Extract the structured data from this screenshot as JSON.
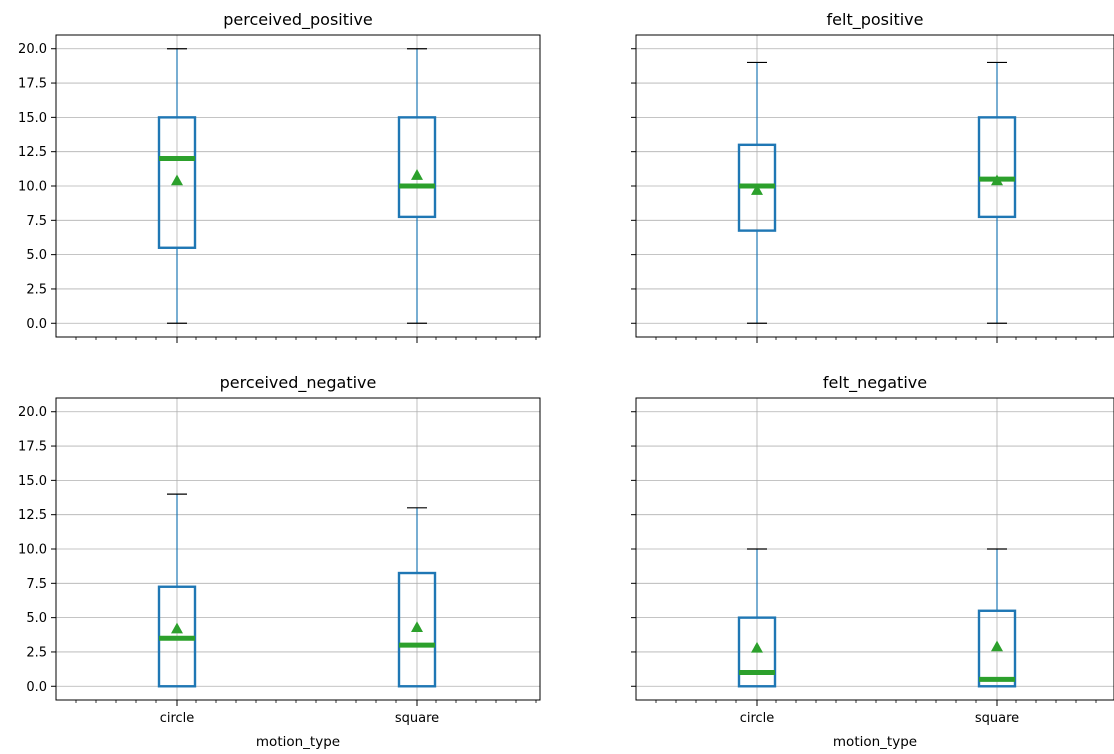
{
  "chart_data": [
    {
      "type": "box",
      "title": "perceived_positive",
      "xlabel": "",
      "categories": [
        "circle",
        "square"
      ],
      "show_xticklabels": false,
      "show_yticklabels": true,
      "ylim": [
        -1,
        21
      ],
      "yticks": [
        "0.0",
        "2.5",
        "5.0",
        "7.5",
        "10.0",
        "12.5",
        "15.0",
        "17.5",
        "20.0"
      ],
      "grid": true,
      "boxes": [
        {
          "category": "circle",
          "whisker_low": 0,
          "q1": 5.5,
          "median": 12,
          "q3": 15,
          "whisker_high": 20,
          "mean": 10.4
        },
        {
          "category": "square",
          "whisker_low": 0,
          "q1": 7.75,
          "median": 10,
          "q3": 15,
          "whisker_high": 20,
          "mean": 10.8
        }
      ]
    },
    {
      "type": "box",
      "title": "felt_positive",
      "xlabel": "",
      "categories": [
        "circle",
        "square"
      ],
      "show_xticklabels": false,
      "show_yticklabels": false,
      "ylim": [
        -1,
        21
      ],
      "yticks": [
        "0.0",
        "2.5",
        "5.0",
        "7.5",
        "10.0",
        "12.5",
        "15.0",
        "17.5",
        "20.0"
      ],
      "grid": true,
      "boxes": [
        {
          "category": "circle",
          "whisker_low": 0,
          "q1": 6.75,
          "median": 10,
          "q3": 13,
          "whisker_high": 19,
          "mean": 9.7
        },
        {
          "category": "square",
          "whisker_low": 0,
          "q1": 7.75,
          "median": 10.5,
          "q3": 15,
          "whisker_high": 19,
          "mean": 10.4
        }
      ]
    },
    {
      "type": "box",
      "title": "perceived_negative",
      "xlabel": "motion_type",
      "categories": [
        "circle",
        "square"
      ],
      "show_xticklabels": true,
      "show_yticklabels": true,
      "ylim": [
        -1,
        21
      ],
      "yticks": [
        "0.0",
        "2.5",
        "5.0",
        "7.5",
        "10.0",
        "12.5",
        "15.0",
        "17.5",
        "20.0"
      ],
      "grid": true,
      "boxes": [
        {
          "category": "circle",
          "whisker_low": 0,
          "q1": 0,
          "median": 3.5,
          "q3": 7.25,
          "whisker_high": 14,
          "mean": 4.2
        },
        {
          "category": "square",
          "whisker_low": 0,
          "q1": 0,
          "median": 3,
          "q3": 8.25,
          "whisker_high": 13,
          "mean": 4.3
        }
      ]
    },
    {
      "type": "box",
      "title": "felt_negative",
      "xlabel": "motion_type",
      "categories": [
        "circle",
        "square"
      ],
      "show_xticklabels": true,
      "show_yticklabels": false,
      "ylim": [
        -1,
        21
      ],
      "yticks": [
        "0.0",
        "2.5",
        "5.0",
        "7.5",
        "10.0",
        "12.5",
        "15.0",
        "17.5",
        "20.0"
      ],
      "grid": true,
      "boxes": [
        {
          "category": "circle",
          "whisker_low": 0,
          "q1": 0,
          "median": 1,
          "q3": 5,
          "whisker_high": 10,
          "mean": 2.8
        },
        {
          "category": "square",
          "whisker_low": 0,
          "q1": 0,
          "median": 0.5,
          "q3": 5.5,
          "whisker_high": 10,
          "mean": 2.9
        }
      ]
    }
  ],
  "colors": {
    "box": "#1f77b4",
    "median": "#2ca02c",
    "mean_marker": "#2ca02c",
    "grid": "#b0b0b0",
    "axes": "#000000"
  }
}
